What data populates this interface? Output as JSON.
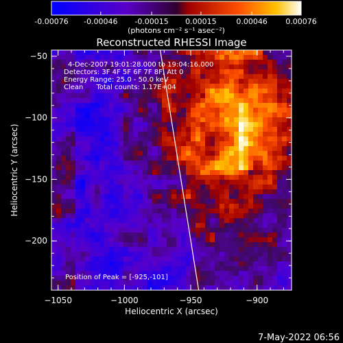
{
  "chart_data": {
    "type": "heatmap",
    "title": "Reconstructed RHESSI Image",
    "xlabel": "Heliocentric X (arcsec)",
    "ylabel": "Heliocentric Y (arcsec)",
    "xlim": [
      -1055,
      -874
    ],
    "ylim": [
      -240,
      -45
    ],
    "x_ticks": [
      -1050,
      -1000,
      -950,
      -900
    ],
    "y_ticks": [
      -50,
      -100,
      -150,
      -200
    ],
    "colorbar": {
      "ticks": [
        "-0.00076",
        "-0.00046",
        "-0.00015",
        "0.00015",
        "0.00046",
        "0.00076"
      ],
      "unit_label": "(photons cm⁻² s⁻¹ asec⁻²)",
      "range": [
        -0.00076,
        0.00076
      ]
    },
    "annotations": [
      "4-Dec-2007 19:01:28.000 to 19:04:16.000",
      "Detectors: 3F 4F 5F 6F 7F 8F, Att 0",
      "Energy Range: 25.0 - 50.0 keV",
      "Clean      Total counts: 1.17E+04"
    ],
    "peak_label": "Position of Peak = [-925,-101]",
    "peak": [
      -925,
      -101
    ],
    "limb_line": [
      [
        -973,
        -45
      ],
      [
        -944,
        -240
      ]
    ],
    "grid": false
  },
  "timestamp": "7-May-2022 06:56",
  "colors": {
    "background": "#000000",
    "text": "#ffffff",
    "axes": "#ffffff"
  }
}
